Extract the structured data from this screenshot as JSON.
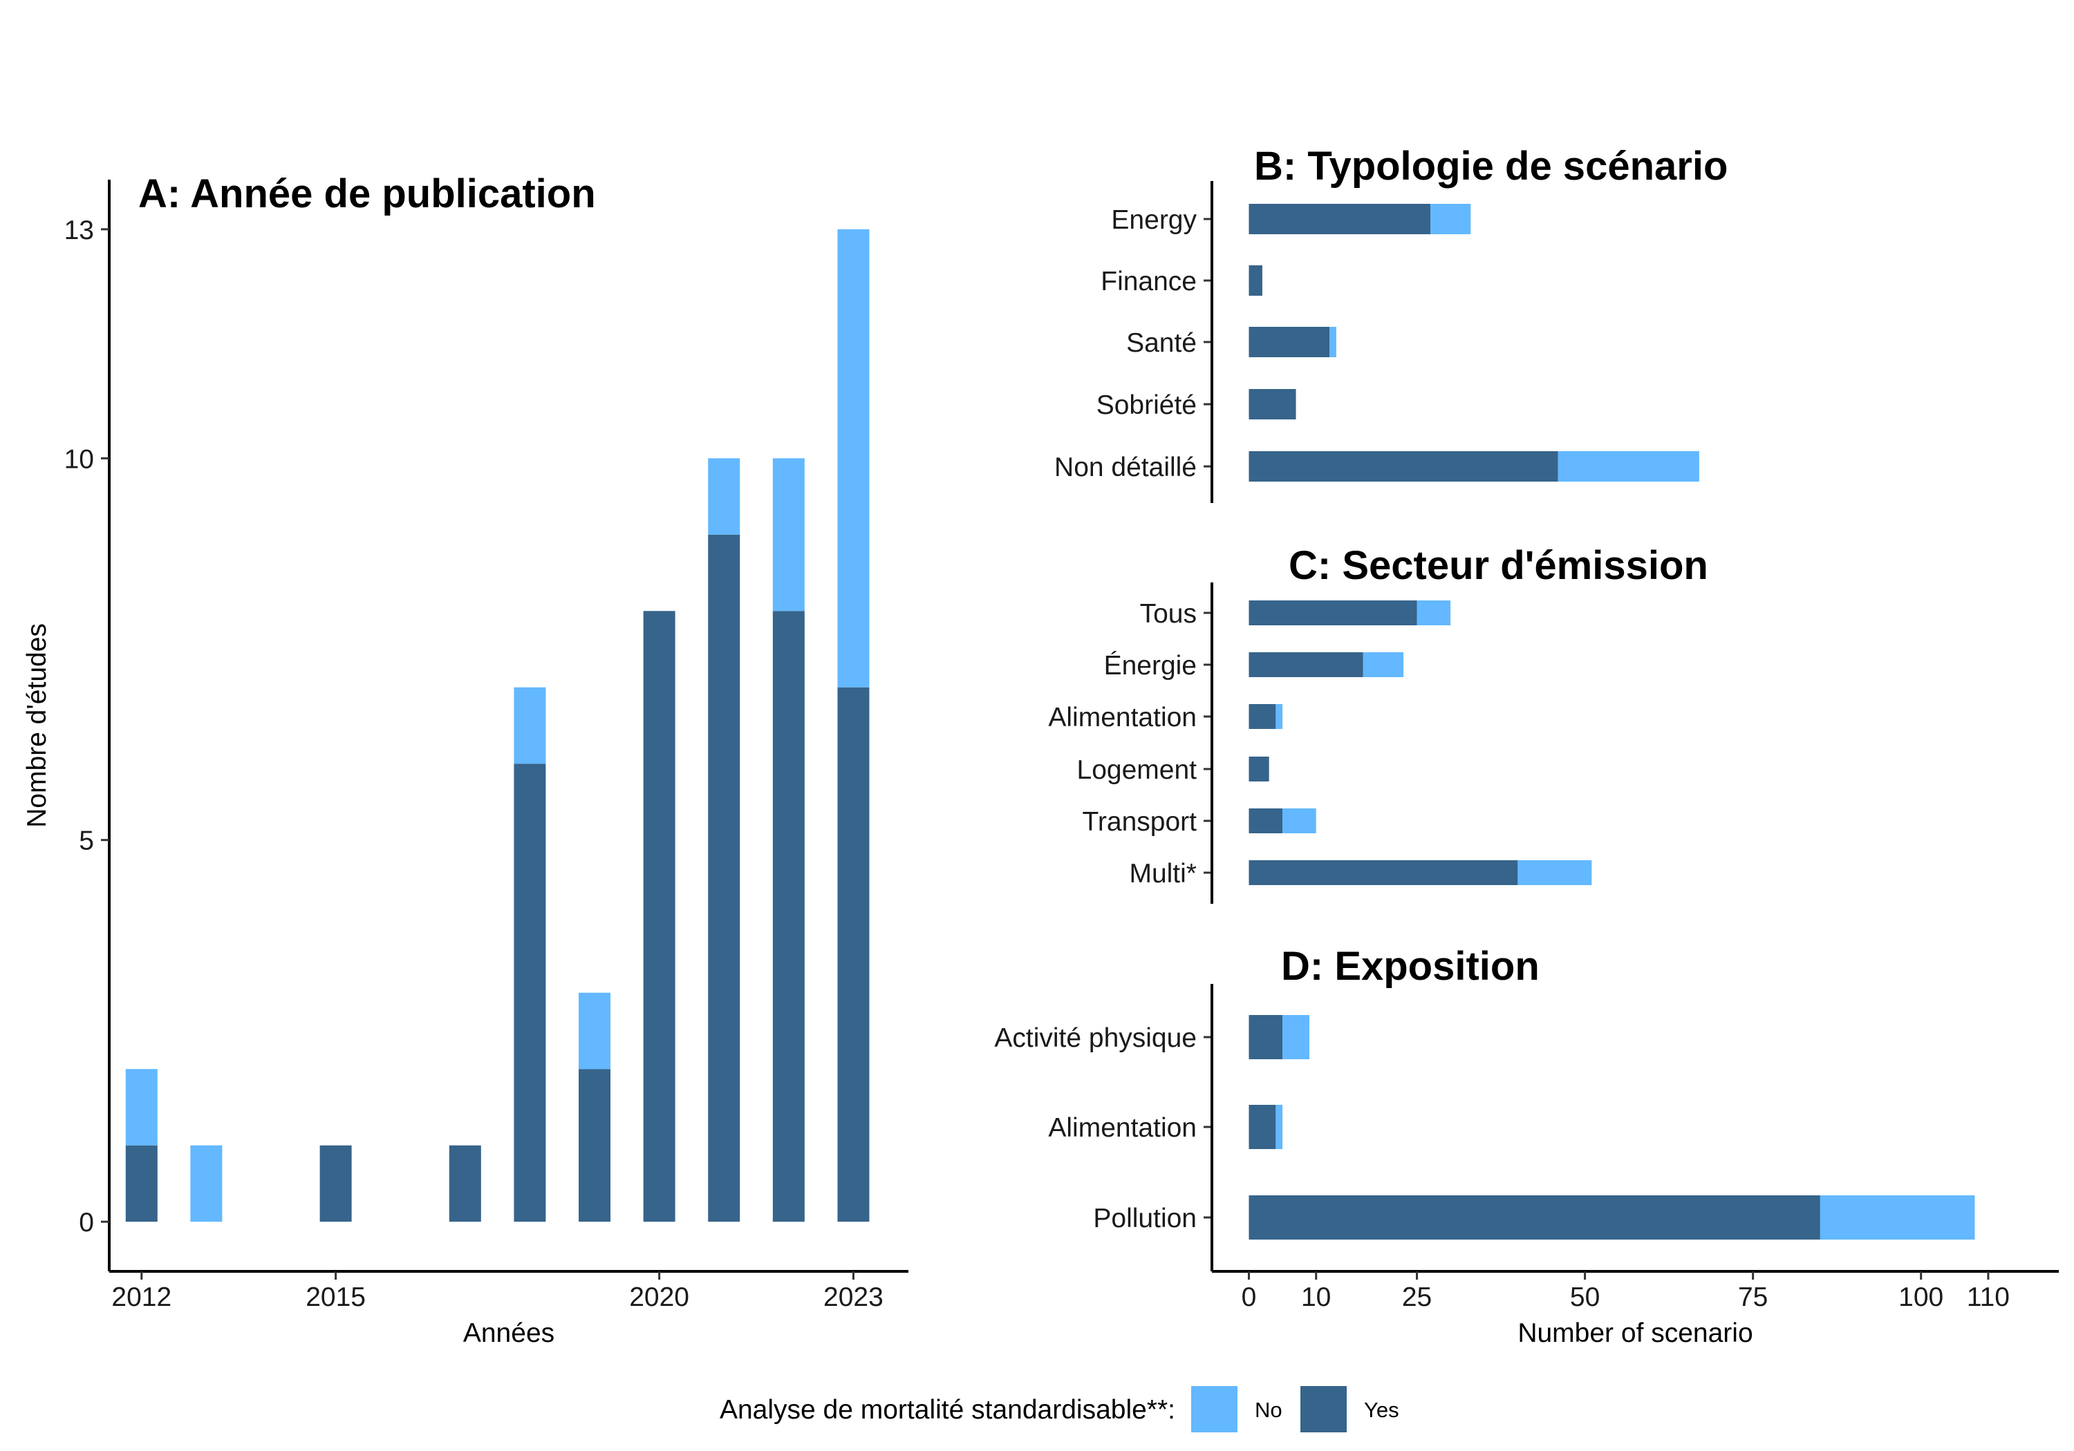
{
  "colors": {
    "no": "#63b8ff",
    "yes": "#36648b"
  },
  "legend": {
    "title": "Analyse de mortalité standardisable**:",
    "items": [
      {
        "key": "no",
        "label": "No"
      },
      {
        "key": "yes",
        "label": "Yes"
      }
    ]
  },
  "chart_data": [
    {
      "panel": "A",
      "type": "bar",
      "stacked": true,
      "orientation": "vertical",
      "title": "A: Année de publication",
      "xlabel": "Années",
      "ylabel": "Nombre d'études",
      "x": [
        2012,
        2013,
        2015,
        2017,
        2018,
        2019,
        2020,
        2021,
        2022,
        2023
      ],
      "series": [
        {
          "name": "Yes",
          "key": "yes",
          "values": [
            1,
            0,
            1,
            1,
            6,
            2,
            8,
            9,
            8,
            7
          ]
        },
        {
          "name": "No",
          "key": "no",
          "values": [
            1,
            1,
            0,
            0,
            1,
            1,
            0,
            1,
            2,
            6
          ]
        }
      ],
      "xticks": [
        2012,
        2015,
        2020,
        2023
      ],
      "yticks": [
        0,
        5,
        10,
        13
      ],
      "ylim": [
        -0.65,
        13.65
      ],
      "xlim": [
        2011.5,
        2023.85
      ]
    },
    {
      "panel": "B",
      "type": "bar",
      "stacked": true,
      "orientation": "horizontal",
      "title": "B: Typologie de scénario",
      "categories": [
        "Energy",
        "Finance",
        "Santé",
        "Sobriété",
        "Non détaillé"
      ],
      "series": [
        {
          "name": "Yes",
          "key": "yes",
          "values": [
            27,
            2,
            12,
            7,
            46
          ]
        },
        {
          "name": "No",
          "key": "no",
          "values": [
            6,
            0,
            1,
            0,
            21
          ]
        }
      ]
    },
    {
      "panel": "C",
      "type": "bar",
      "stacked": true,
      "orientation": "horizontal",
      "title": "C: Secteur d'émission",
      "categories": [
        "Tous",
        "Énergie",
        "Alimentation",
        "Logement",
        "Transport",
        "Multi*"
      ],
      "series": [
        {
          "name": "Yes",
          "key": "yes",
          "values": [
            25,
            17,
            4,
            3,
            5,
            40
          ]
        },
        {
          "name": "No",
          "key": "no",
          "values": [
            5,
            6,
            1,
            0,
            5,
            11
          ]
        }
      ]
    },
    {
      "panel": "D",
      "type": "bar",
      "stacked": true,
      "orientation": "horizontal",
      "title": "D: Exposition",
      "xlabel": "Number of scenario",
      "categories": [
        "Activité physique",
        "Alimentation",
        "Pollution"
      ],
      "series": [
        {
          "name": "Yes",
          "key": "yes",
          "values": [
            5,
            4,
            85
          ]
        },
        {
          "name": "No",
          "key": "no",
          "values": [
            4,
            1,
            23
          ]
        }
      ],
      "xticks": [
        0,
        10,
        25,
        50,
        75,
        100,
        110
      ],
      "xlim": [
        -5.5,
        120.5
      ]
    }
  ]
}
